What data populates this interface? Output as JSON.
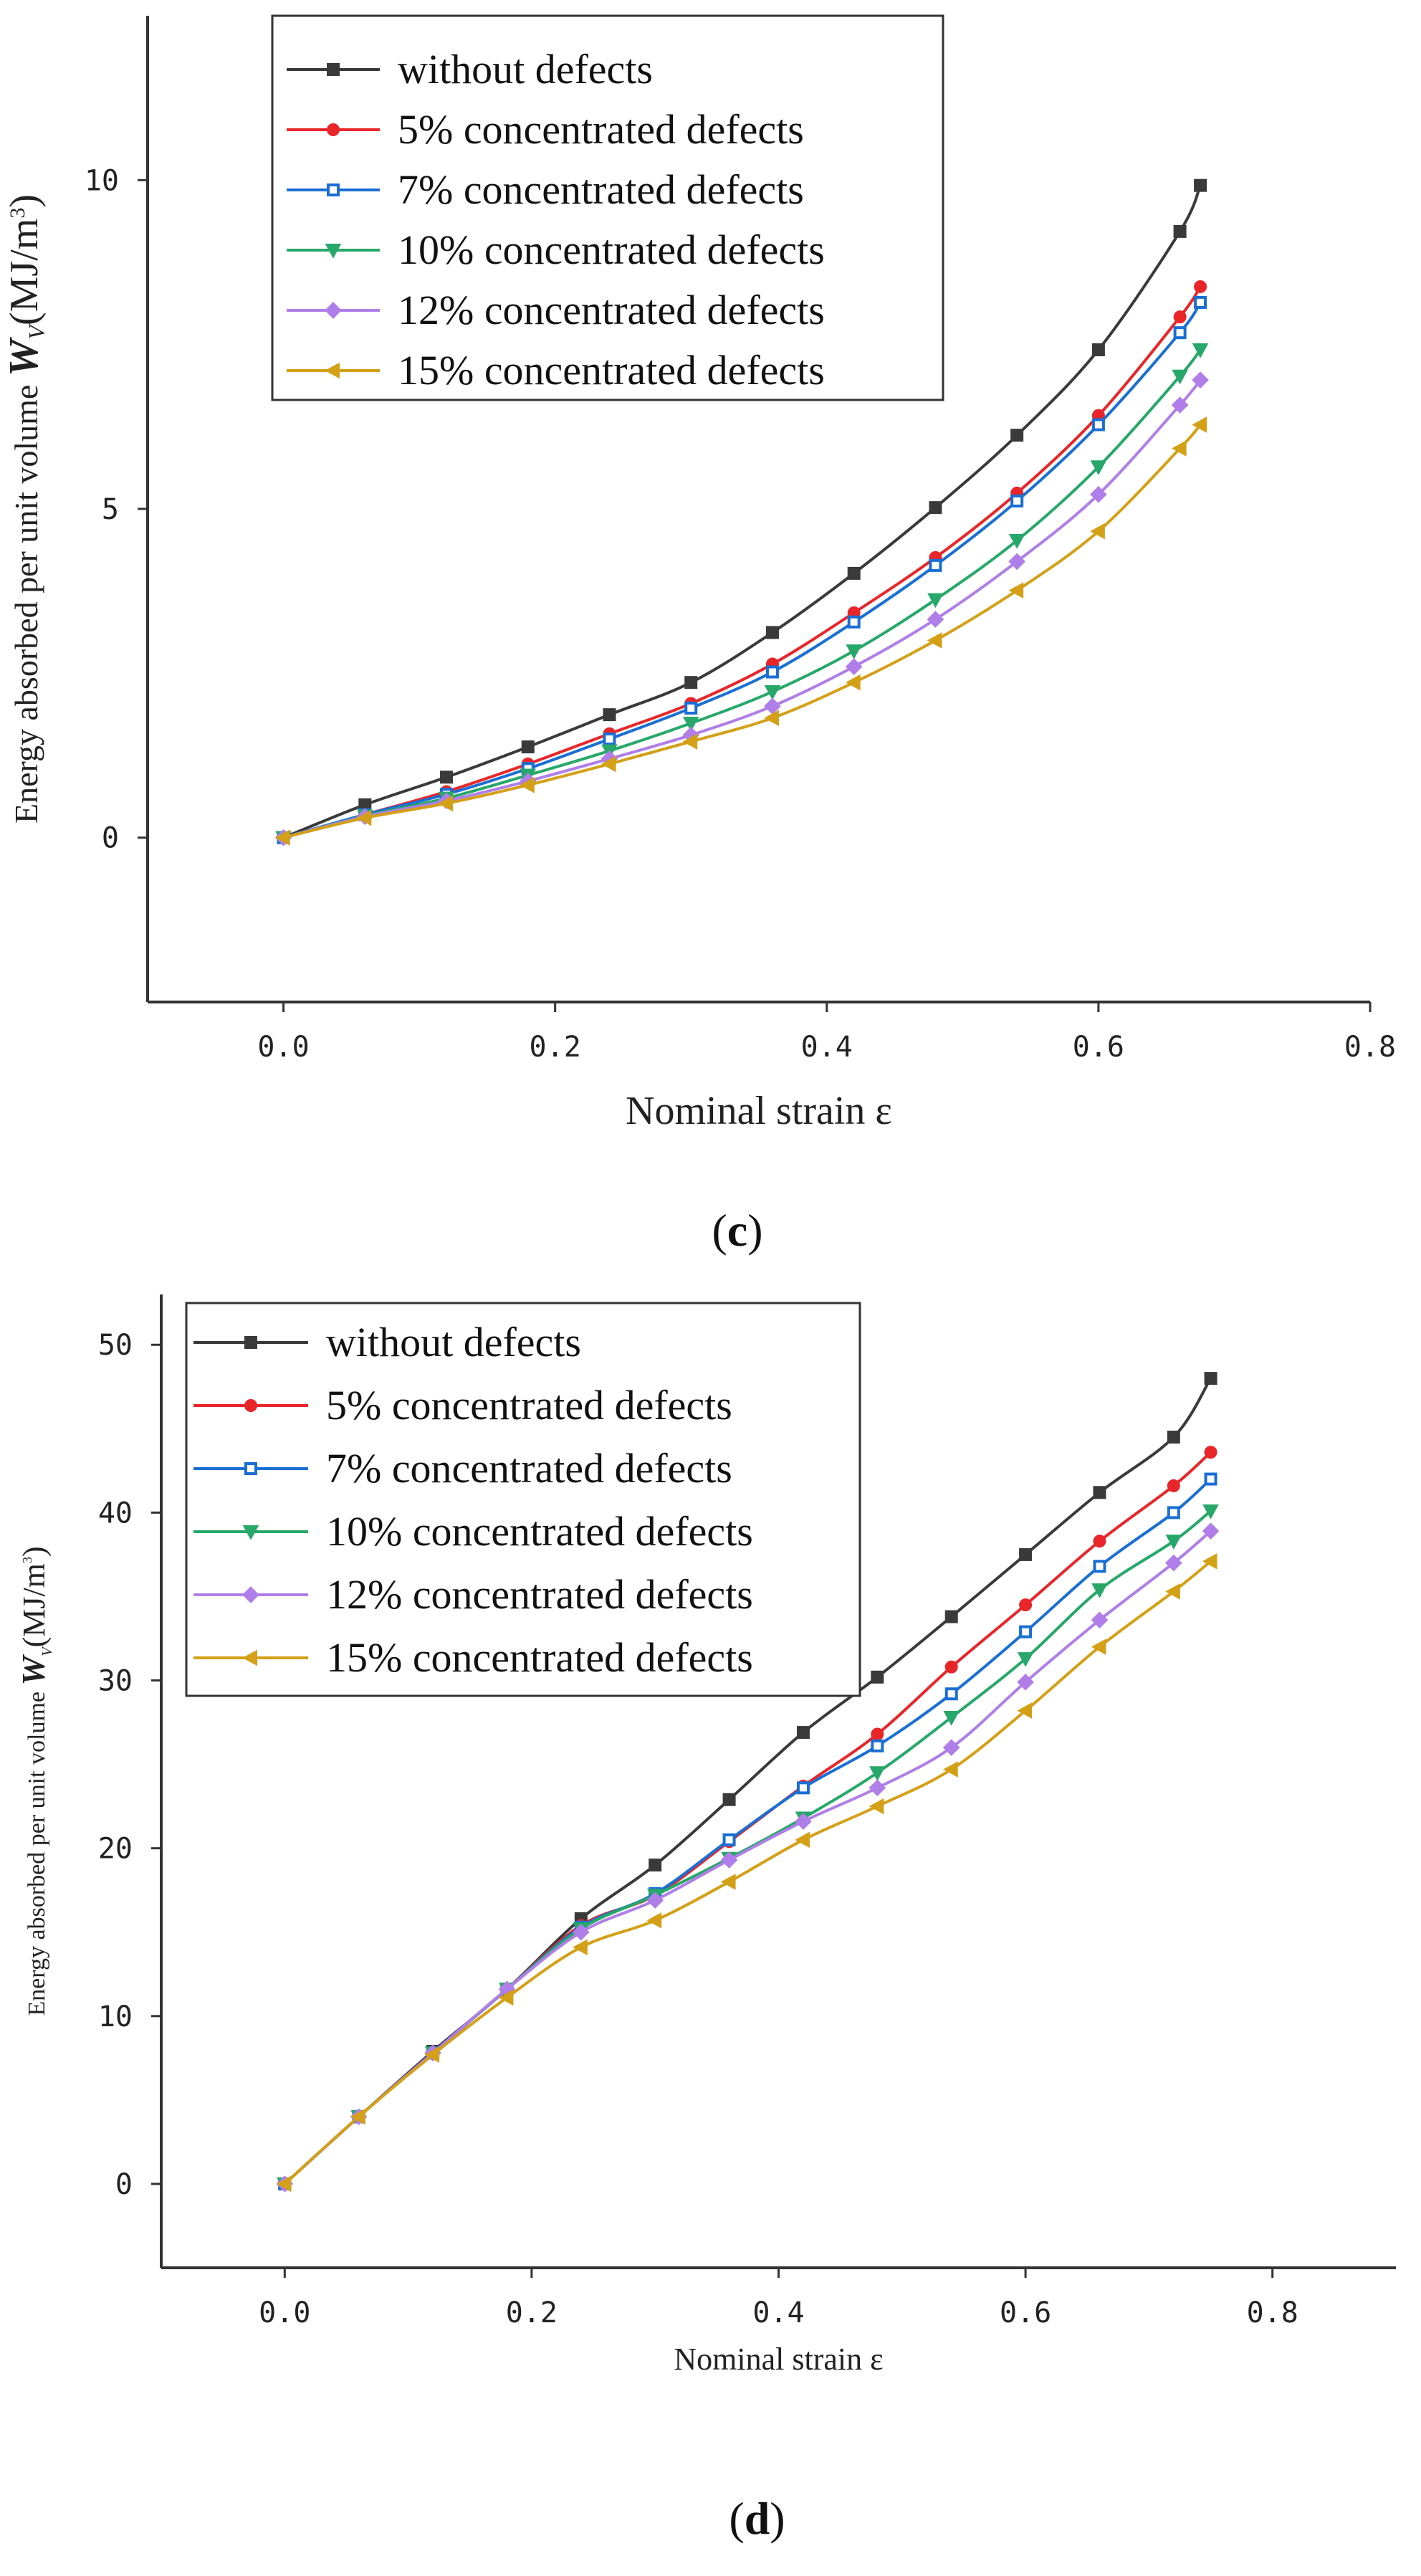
{
  "series_styles": [
    {
      "color": "#3a3a3a",
      "marker": "square"
    },
    {
      "color": "#e8262a",
      "marker": "circle"
    },
    {
      "color": "#1a6fd4",
      "marker": "square-open"
    },
    {
      "color": "#27a86a",
      "marker": "triangle-down"
    },
    {
      "color": "#b07ee8",
      "marker": "diamond"
    },
    {
      "color": "#d4a017",
      "marker": "triangle-left"
    }
  ],
  "chart_data": [
    {
      "type": "line",
      "panel_label": "c",
      "xlabel": "Nominal strain ε",
      "ylabel_main": "Energy absorbed per unit volume ",
      "ylabel_sym": "W",
      "ylabel_sub": "V",
      "ylabel_unit": "(MJ/m",
      "ylabel_sup": "3",
      "ylabel_close": ")",
      "xlim": [
        -0.1,
        0.8
      ],
      "ylim": [
        -2.5,
        12.5
      ],
      "xticks": [
        "0.0",
        "0.2",
        "0.4",
        "0.6",
        "0.8"
      ],
      "xtick_values": [
        0.0,
        0.2,
        0.4,
        0.6,
        0.8
      ],
      "yticks": [
        "0",
        "5",
        "10"
      ],
      "ytick_values": [
        0,
        5,
        10
      ],
      "legend_position": "top-left",
      "x": [
        0,
        0.06,
        0.12,
        0.18,
        0.24,
        0.3,
        0.36,
        0.42,
        0.48,
        0.54,
        0.6,
        0.66,
        0.675
      ],
      "series": [
        {
          "name": "without defects",
          "values": [
            0,
            0.5,
            0.92,
            1.38,
            1.87,
            2.36,
            3.12,
            4.02,
            5.02,
            6.12,
            7.42,
            9.22,
            9.92
          ]
        },
        {
          "name": "5% concentrated defects",
          "values": [
            0,
            0.35,
            0.7,
            1.12,
            1.58,
            2.04,
            2.64,
            3.42,
            4.26,
            5.24,
            6.42,
            7.92,
            8.38
          ]
        },
        {
          "name": "7% concentrated defects",
          "values": [
            0,
            0.35,
            0.66,
            1.05,
            1.5,
            1.97,
            2.52,
            3.28,
            4.14,
            5.12,
            6.28,
            7.68,
            8.14
          ]
        },
        {
          "name": "10% concentrated defects",
          "values": [
            0,
            0.33,
            0.6,
            0.95,
            1.32,
            1.74,
            2.22,
            2.84,
            3.62,
            4.52,
            5.64,
            7.02,
            7.42
          ]
        },
        {
          "name": "12% concentrated defects",
          "values": [
            0,
            0.32,
            0.56,
            0.86,
            1.2,
            1.56,
            2.0,
            2.6,
            3.32,
            4.2,
            5.22,
            6.58,
            6.96
          ]
        },
        {
          "name": "15% concentrated defects",
          "values": [
            0,
            0.3,
            0.52,
            0.8,
            1.12,
            1.46,
            1.82,
            2.36,
            3.0,
            3.76,
            4.66,
            5.92,
            6.28
          ]
        }
      ]
    },
    {
      "type": "line",
      "panel_label": "d",
      "xlabel": "Nominal strain ε",
      "ylabel_main": "Energy absorbed per unit volume ",
      "ylabel_sym": "W",
      "ylabel_sub": "V",
      "ylabel_unit": "(MJ/m",
      "ylabel_sup": "3",
      "ylabel_close": ")",
      "xlim": [
        -0.1,
        0.9
      ],
      "ylim": [
        -5,
        53
      ],
      "xticks": [
        "0.0",
        "0.2",
        "0.4",
        "0.6",
        "0.8"
      ],
      "xtick_values": [
        0.0,
        0.2,
        0.4,
        0.6,
        0.8
      ],
      "yticks": [
        "0",
        "10",
        "20",
        "30",
        "40",
        "50"
      ],
      "ytick_values": [
        0,
        10,
        20,
        30,
        40,
        50
      ],
      "legend_position": "top-left",
      "x": [
        0,
        0.06,
        0.12,
        0.18,
        0.24,
        0.3,
        0.36,
        0.42,
        0.48,
        0.54,
        0.6,
        0.66,
        0.72,
        0.75
      ],
      "series": [
        {
          "name": "without defects",
          "values": [
            0,
            4.0,
            7.9,
            11.6,
            15.8,
            19.0,
            22.9,
            26.9,
            30.2,
            33.8,
            37.5,
            41.2,
            44.5,
            48.0
          ]
        },
        {
          "name": "5% concentrated defects",
          "values": [
            0,
            4.0,
            7.8,
            11.6,
            15.4,
            17.2,
            20.4,
            23.7,
            26.8,
            30.8,
            34.5,
            38.3,
            41.6,
            43.6
          ]
        },
        {
          "name": "7% concentrated defects",
          "values": [
            0,
            4.0,
            7.8,
            11.6,
            15.3,
            17.3,
            20.5,
            23.6,
            26.1,
            29.2,
            32.9,
            36.8,
            40.0,
            42.0
          ]
        },
        {
          "name": "10% concentrated defects",
          "values": [
            0,
            4.0,
            7.8,
            11.6,
            15.2,
            17.2,
            19.4,
            21.8,
            24.5,
            27.8,
            31.3,
            35.4,
            38.3,
            40.1
          ]
        },
        {
          "name": "12% concentrated defects",
          "values": [
            0,
            4.0,
            7.8,
            11.6,
            15.0,
            16.9,
            19.3,
            21.6,
            23.6,
            26.0,
            29.9,
            33.6,
            37.0,
            38.9
          ]
        },
        {
          "name": "15% concentrated defects",
          "values": [
            0,
            4.0,
            7.7,
            11.1,
            14.1,
            15.7,
            18.0,
            20.5,
            22.5,
            24.7,
            28.2,
            32.0,
            35.3,
            37.1
          ]
        }
      ]
    }
  ]
}
